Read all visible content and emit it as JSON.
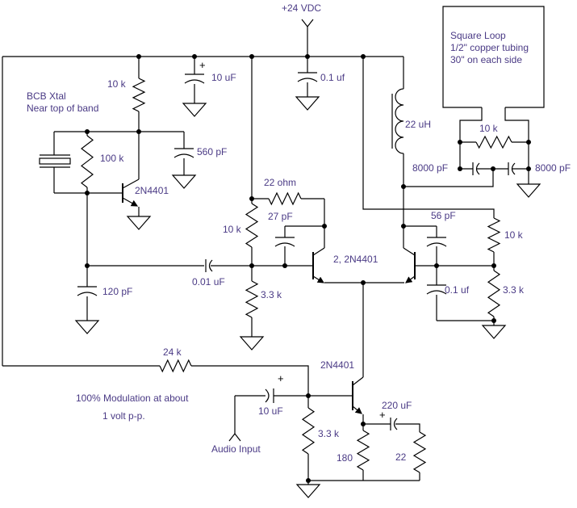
{
  "colors": {
    "wire": "#000000",
    "label": "#4a3a85",
    "background": "#ffffff"
  },
  "labels": {
    "supply": "+24 VDC",
    "plus_sign": "+",
    "antenna_note": "Square Loop\n1/2\" copper tubing\n30\" on each side",
    "xtal_note": "BCB Xtal\nNear top of band",
    "r_osc_collector": "10 k",
    "c_supply_bypass_10uF": "10 uF",
    "c_supply_bypass_01uF": "0.1 uf",
    "r_osc_feedback": "100 k",
    "c_osc_collector": "560 pF",
    "q_osc": "2N4401",
    "l_choke": "22 uH",
    "r_loop_damp": "10 k",
    "c_loop_left": "8000 pF",
    "c_loop_right": "8000 pF",
    "r_driver_collector": "22 ohm",
    "c_fb_left": "27 pF",
    "r_bias_left": "10 k",
    "c_fb_right": "56 pF",
    "r_bias_right": "10 k",
    "q_pair": "2, 2N4401",
    "c_coupling": "0.01 uF",
    "c_osc_out": "120 pF",
    "r_base_left": "3.3 k",
    "c_base_right": "0.1 uf",
    "r_base_right": "3.3 k",
    "r_mod_bias": "24 k",
    "q_mod": "2N4401",
    "mod_note_line1": "100% Modulation at about",
    "mod_note_line2": "1 volt p-p.",
    "c_audio": "10 uF",
    "audio_input_label": "Audio Input",
    "r_mod_base": "3.3 k",
    "r_mod_emitter": "180",
    "c_mod_bypass": "220 uF",
    "r_mod_22": "22"
  }
}
